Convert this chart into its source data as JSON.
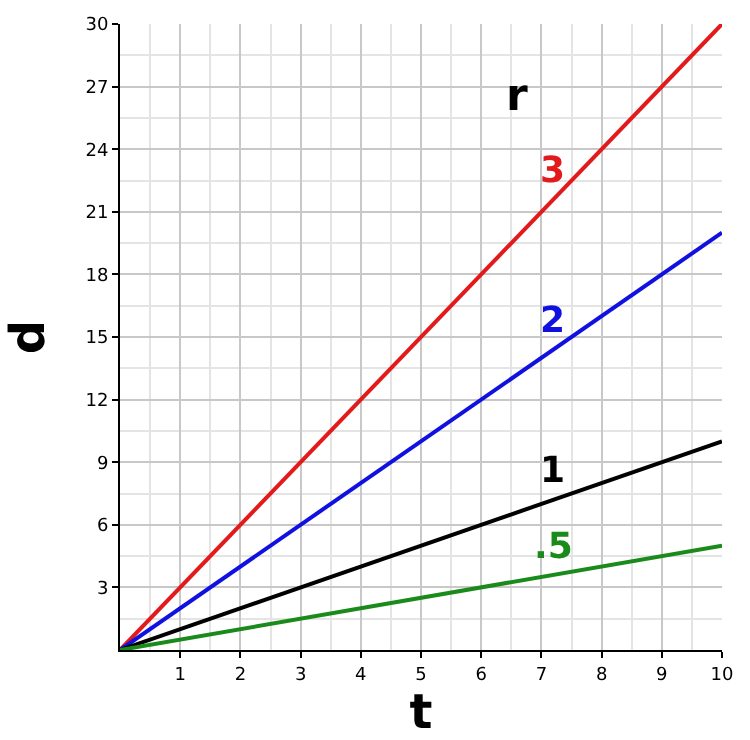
{
  "chart_data": {
    "type": "line",
    "xlabel": "t",
    "ylabel": "d",
    "annotations": [
      "r"
    ],
    "x": [
      0,
      10
    ],
    "series": [
      {
        "name": "3",
        "color": "#e31a1c",
        "values": [
          0,
          30
        ]
      },
      {
        "name": "2",
        "color": "#1010e0",
        "values": [
          0,
          20
        ]
      },
      {
        "name": "1",
        "color": "#000000",
        "values": [
          0,
          10
        ]
      },
      {
        "name": ".5",
        "color": "#1a8a1a",
        "values": [
          0,
          5
        ]
      }
    ],
    "xlim": [
      0,
      10
    ],
    "ylim": [
      0,
      30
    ],
    "xticks": [
      1,
      2,
      3,
      4,
      5,
      6,
      7,
      8,
      9,
      10
    ],
    "yticks": [
      3,
      6,
      9,
      12,
      15,
      18,
      21,
      24,
      27,
      30
    ],
    "grid": true,
    "legend": false,
    "marker": "none",
    "line_style": "solid"
  }
}
